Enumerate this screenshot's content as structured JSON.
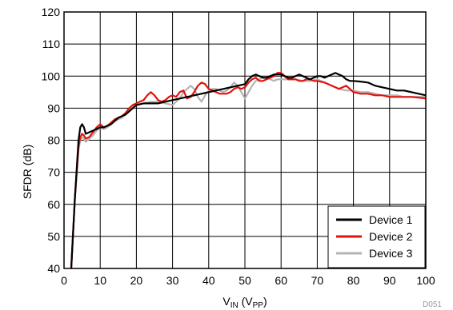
{
  "chart_data": {
    "type": "line",
    "title": "",
    "xlabel_main": "V",
    "xlabel_sub1": "IN",
    "xlabel_mid": " (V",
    "xlabel_sub2": "PP",
    "xlabel_end": ")",
    "ylabel": "SFDR (dB)",
    "xlim": [
      0,
      100
    ],
    "ylim": [
      40,
      120
    ],
    "xticks": [
      0,
      10,
      20,
      30,
      40,
      50,
      60,
      70,
      80,
      90,
      100
    ],
    "yticks": [
      40,
      50,
      60,
      70,
      80,
      90,
      100,
      110,
      120
    ],
    "grid": true,
    "legend_position": "bottom-right",
    "figure_code": "D051",
    "series": [
      {
        "name": "Device 1",
        "color": "#000000",
        "x": [
          2,
          3,
          4,
          4.5,
          5,
          5.5,
          6,
          7,
          8,
          9,
          10,
          11,
          12,
          13,
          14,
          15,
          16,
          17,
          18,
          19,
          20,
          22,
          24,
          26,
          28,
          30,
          32,
          34,
          36,
          38,
          40,
          42,
          44,
          46,
          48,
          50,
          51,
          52,
          53,
          54,
          55,
          56,
          57,
          58,
          59,
          60,
          61,
          62,
          63,
          64,
          65,
          66,
          67,
          68,
          69,
          70,
          71,
          72,
          73,
          74,
          75,
          76,
          77,
          78,
          79,
          80,
          82,
          84,
          86,
          88,
          90,
          92,
          94,
          96,
          98,
          100
        ],
        "y": [
          40,
          62,
          80,
          84,
          85,
          84,
          82,
          82.5,
          83,
          83.5,
          84,
          84,
          84.5,
          85,
          86,
          87,
          87.5,
          88,
          89,
          90,
          91,
          91.5,
          91.5,
          91.5,
          92,
          92.5,
          93,
          93.5,
          94,
          94.5,
          95,
          95.5,
          96,
          96.5,
          97,
          97.5,
          99,
          100,
          100.5,
          100,
          99.5,
          99.5,
          100,
          100.5,
          100.5,
          100.5,
          100,
          99.5,
          99.5,
          100,
          100.5,
          100,
          99.5,
          99,
          99.5,
          100,
          100,
          99.5,
          100,
          100.5,
          101,
          100.5,
          100,
          99,
          98.5,
          98.5,
          98.3,
          98,
          97,
          96.5,
          96,
          95.5,
          95.5,
          95,
          94.5,
          94
        ]
      },
      {
        "name": "Device 2",
        "color": "#e3120b",
        "x": [
          2,
          3,
          4,
          4.5,
          5,
          5.5,
          6,
          7,
          8,
          9,
          10,
          11,
          12,
          13,
          14,
          15,
          16,
          17,
          18,
          19,
          20,
          21,
          22,
          23,
          24,
          25,
          26,
          27,
          28,
          29,
          30,
          31,
          32,
          33,
          34,
          35,
          36,
          37,
          38,
          39,
          40,
          41,
          42,
          43,
          44,
          45,
          46,
          47,
          48,
          49,
          50,
          51,
          52,
          53,
          54,
          55,
          56,
          57,
          58,
          59,
          60,
          61,
          62,
          63,
          64,
          65,
          66,
          67,
          68,
          69,
          70,
          72,
          74,
          76,
          78,
          80,
          82,
          84,
          86,
          88,
          90,
          92,
          94,
          96,
          98,
          100
        ],
        "y": [
          40,
          62,
          78,
          81,
          82,
          81.5,
          80.5,
          81,
          82.5,
          84,
          85,
          84,
          84.5,
          85.5,
          86.5,
          87,
          87.5,
          88.5,
          90,
          91,
          91.5,
          92,
          92.5,
          94,
          95,
          94,
          92.5,
          92,
          92.5,
          93.5,
          94,
          93.5,
          95,
          95.5,
          93,
          93.5,
          95,
          97,
          98,
          97.5,
          96,
          95.5,
          95,
          94.5,
          94.5,
          94.5,
          95,
          96,
          96.5,
          96,
          96.5,
          98,
          99,
          99.5,
          98.5,
          98.5,
          99,
          99.5,
          100,
          101,
          101,
          100,
          99,
          99,
          99,
          98.5,
          98.5,
          99,
          99,
          98.5,
          98.5,
          98,
          97,
          96,
          97,
          95,
          94.5,
          94.5,
          94,
          94,
          93.5,
          93.5,
          93.5,
          93.5,
          93.3,
          93
        ]
      },
      {
        "name": "Device 3",
        "color": "#b4b4b4",
        "x": [
          2,
          3,
          4,
          4.5,
          5,
          5.5,
          6,
          7,
          8,
          9,
          10,
          11,
          12,
          13,
          14,
          15,
          16,
          17,
          18,
          19,
          20,
          22,
          24,
          26,
          28,
          30,
          31,
          32,
          33,
          34,
          35,
          36,
          37,
          38,
          39,
          40,
          41,
          42,
          43,
          44,
          45,
          46,
          47,
          48,
          49,
          50,
          51,
          52,
          53,
          54,
          55,
          56,
          57,
          58,
          59,
          60,
          62,
          64,
          66,
          68,
          70,
          72,
          74,
          76,
          78,
          80,
          82,
          84,
          86,
          88,
          90,
          92,
          94,
          96,
          98,
          100
        ],
        "y": [
          40,
          62,
          77,
          80,
          81,
          80.5,
          79.5,
          80.5,
          81.5,
          83,
          84,
          83.5,
          84,
          85,
          86,
          86.5,
          87,
          88,
          89.5,
          90.5,
          91,
          91.5,
          92,
          92,
          91.5,
          91,
          92,
          93,
          95,
          96,
          97,
          96,
          93.5,
          92,
          94,
          95.5,
          96,
          96,
          95.5,
          95,
          95.5,
          96.5,
          98,
          97,
          95,
          93,
          95,
          97,
          98.5,
          99,
          99.5,
          99.5,
          99,
          98.5,
          99,
          99,
          99,
          99,
          98.5,
          98.5,
          99,
          98,
          97,
          96,
          95.5,
          95.5,
          95,
          95,
          94.5,
          94,
          94,
          94,
          93.5,
          93.5,
          93.5,
          93.5
        ]
      }
    ]
  }
}
